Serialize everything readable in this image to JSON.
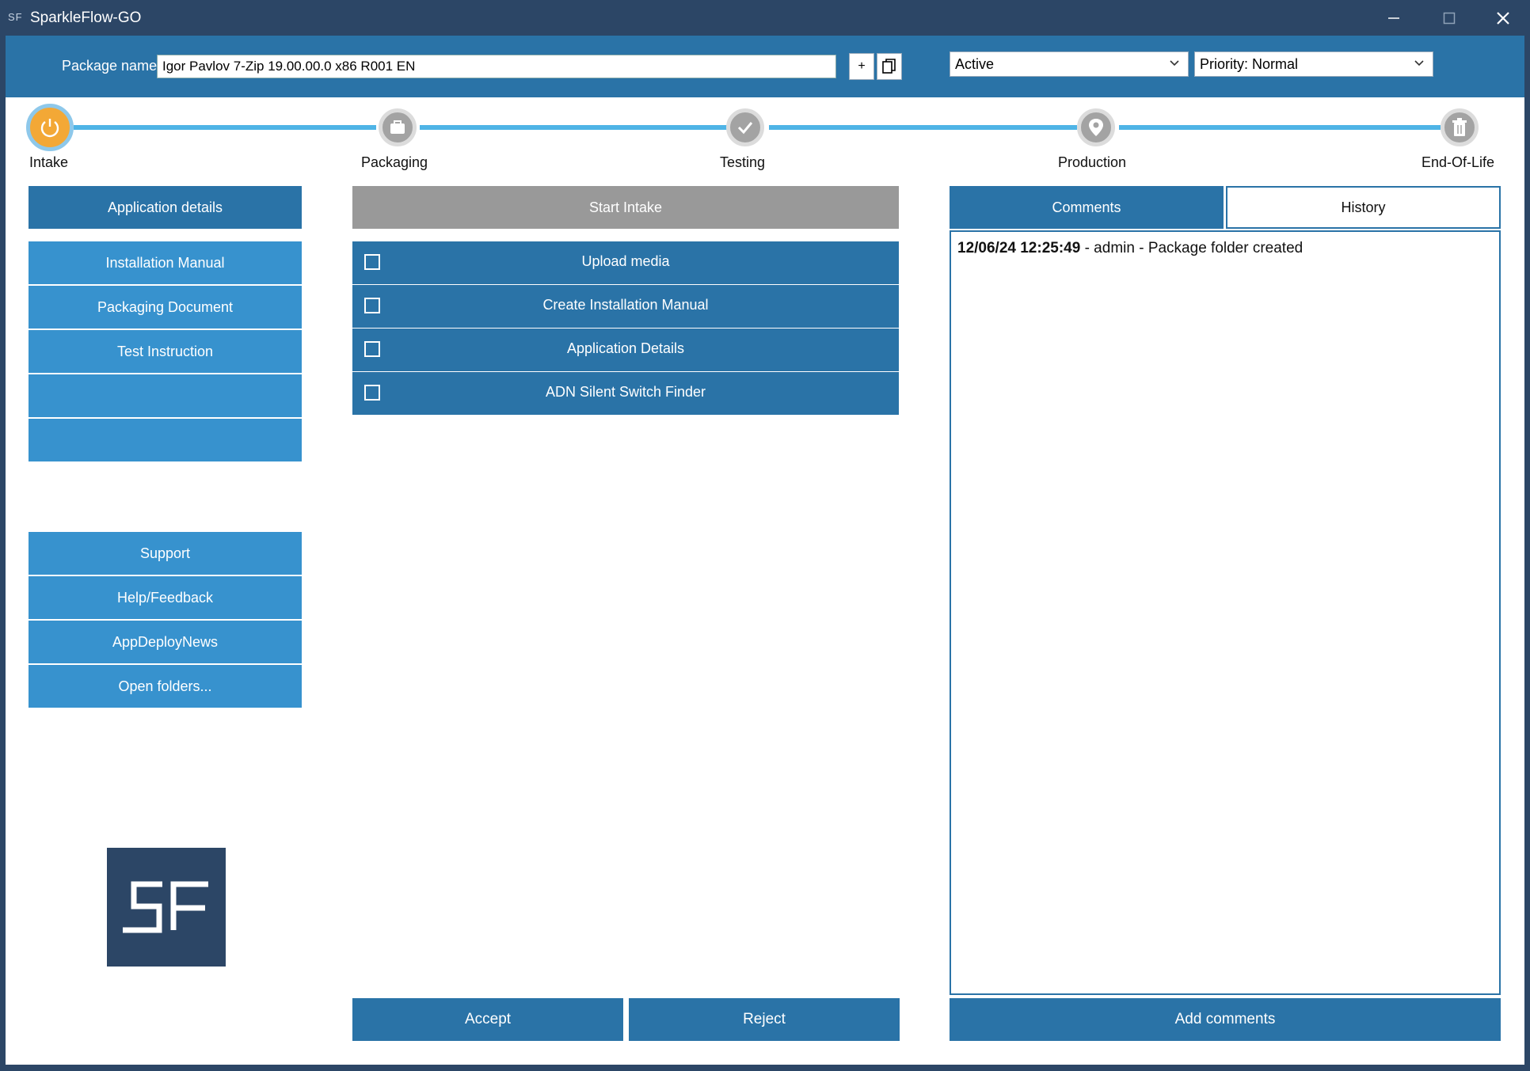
{
  "window": {
    "app_icon": "SF",
    "title": "SparkleFlow-GO",
    "controls": {
      "minimize": "─",
      "maximize": "☐",
      "close": "✕"
    }
  },
  "header": {
    "package_label": "Package name",
    "package_value": "Igor Pavlov 7-Zip 19.00.00.0 x86 R001 EN",
    "add_button": "+",
    "status_select": "Active",
    "priority_select": "Priority: Normal"
  },
  "steps": [
    {
      "label": "Intake",
      "icon": "power-icon",
      "state": "active"
    },
    {
      "label": "Packaging",
      "icon": "briefcase-icon",
      "state": "inactive"
    },
    {
      "label": "Testing",
      "icon": "check-icon",
      "state": "inactive"
    },
    {
      "label": "Production",
      "icon": "location-pin-icon",
      "state": "inactive"
    },
    {
      "label": "End-Of-Life",
      "icon": "trash-icon",
      "state": "inactive"
    }
  ],
  "sidebar": {
    "top": "Application details",
    "docs": [
      "Installation Manual",
      "Packaging Document",
      "Test Instruction",
      "",
      ""
    ],
    "links": [
      "Support",
      "Help/Feedback",
      "AppDeployNews",
      "Open folders..."
    ]
  },
  "tasks": {
    "start_label": "Start Intake",
    "items": [
      {
        "label": "Upload media",
        "checked": false
      },
      {
        "label": "Create Installation Manual",
        "checked": false
      },
      {
        "label": "Application Details",
        "checked": false
      },
      {
        "label": "ADN Silent Switch Finder",
        "checked": false
      }
    ],
    "accept": "Accept",
    "reject": "Reject"
  },
  "comments": {
    "tabs": [
      "Comments",
      "History"
    ],
    "active_tab": "Comments",
    "entries": [
      {
        "timestamp": "12/06/24 12:25:49",
        "text": " - admin - Package folder created"
      }
    ],
    "add_button": "Add comments"
  },
  "colors": {
    "titlebar": "#2c4666",
    "primary": "#2a73a7",
    "secondary": "#3792ce",
    "track": "#4fb4e6",
    "active_step": "#f3a836",
    "inactive_step": "#a3a3a3",
    "disabled": "#999999"
  }
}
